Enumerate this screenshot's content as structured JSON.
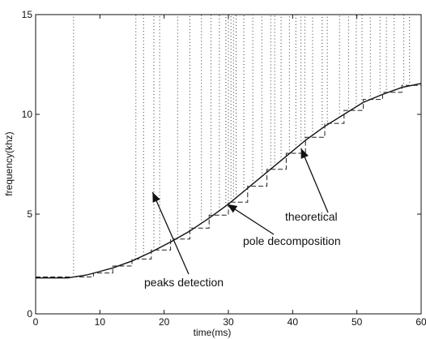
{
  "chart_data": {
    "type": "line",
    "title": "",
    "xlabel": "time(ms)",
    "ylabel": "frequency(khz)",
    "xlim": [
      0,
      60
    ],
    "ylim": [
      0,
      15
    ],
    "xticks": [
      0,
      10,
      20,
      30,
      40,
      50,
      60
    ],
    "yticks": [
      0,
      5,
      10,
      15
    ],
    "grid": false,
    "series": [
      {
        "name": "theoretical",
        "style": "solid",
        "x": [
          0,
          5,
          8,
          12,
          15,
          18,
          21,
          24,
          27,
          30,
          33,
          36,
          39,
          42,
          45,
          48,
          51,
          54,
          57,
          60
        ],
        "y": [
          1.8,
          1.8,
          1.95,
          2.3,
          2.65,
          3.1,
          3.6,
          4.15,
          4.8,
          5.5,
          6.3,
          7.1,
          7.9,
          8.7,
          9.4,
          10.0,
          10.6,
          11.0,
          11.35,
          11.55
        ]
      },
      {
        "name": "pole decomposition",
        "style": "dashed",
        "x": [
          0,
          6,
          9,
          12,
          15,
          18,
          21,
          24,
          27,
          30,
          33,
          36,
          39,
          42,
          45,
          48,
          51,
          54,
          57,
          60
        ],
        "y": [
          1.85,
          1.85,
          2.05,
          2.4,
          2.75,
          3.2,
          3.75,
          4.3,
          4.95,
          5.6,
          6.4,
          7.25,
          8.05,
          8.85,
          9.55,
          10.2,
          10.75,
          11.1,
          11.45,
          11.6
        ]
      },
      {
        "name": "peaks detection",
        "style": "dotted-vertical",
        "x": [
          5.9,
          15.6,
          16.8,
          18.4,
          19.3,
          22.1,
          24.0,
          25.8,
          27.3,
          28.6,
          29.6,
          30.0,
          30.4,
          30.8,
          31.2,
          32.4,
          33.8,
          35.2,
          36.6,
          37.2,
          38.2,
          39.5,
          40.5,
          41.3,
          41.9,
          43.1,
          44.6,
          45.4,
          47.3,
          48.7,
          49.9,
          50.8,
          52.1,
          53.6,
          54.6,
          55.8,
          57.3,
          58.2
        ],
        "y_top": 15
      }
    ],
    "annotations": [
      {
        "text": "theoretical",
        "arrow_to": [
          41.3,
          8.3
        ]
      },
      {
        "text": "pole decomposition",
        "arrow_to": [
          29.8,
          5.5
        ]
      },
      {
        "text": "peaks detection",
        "arrow_to": [
          18.2,
          6.1
        ]
      }
    ]
  }
}
